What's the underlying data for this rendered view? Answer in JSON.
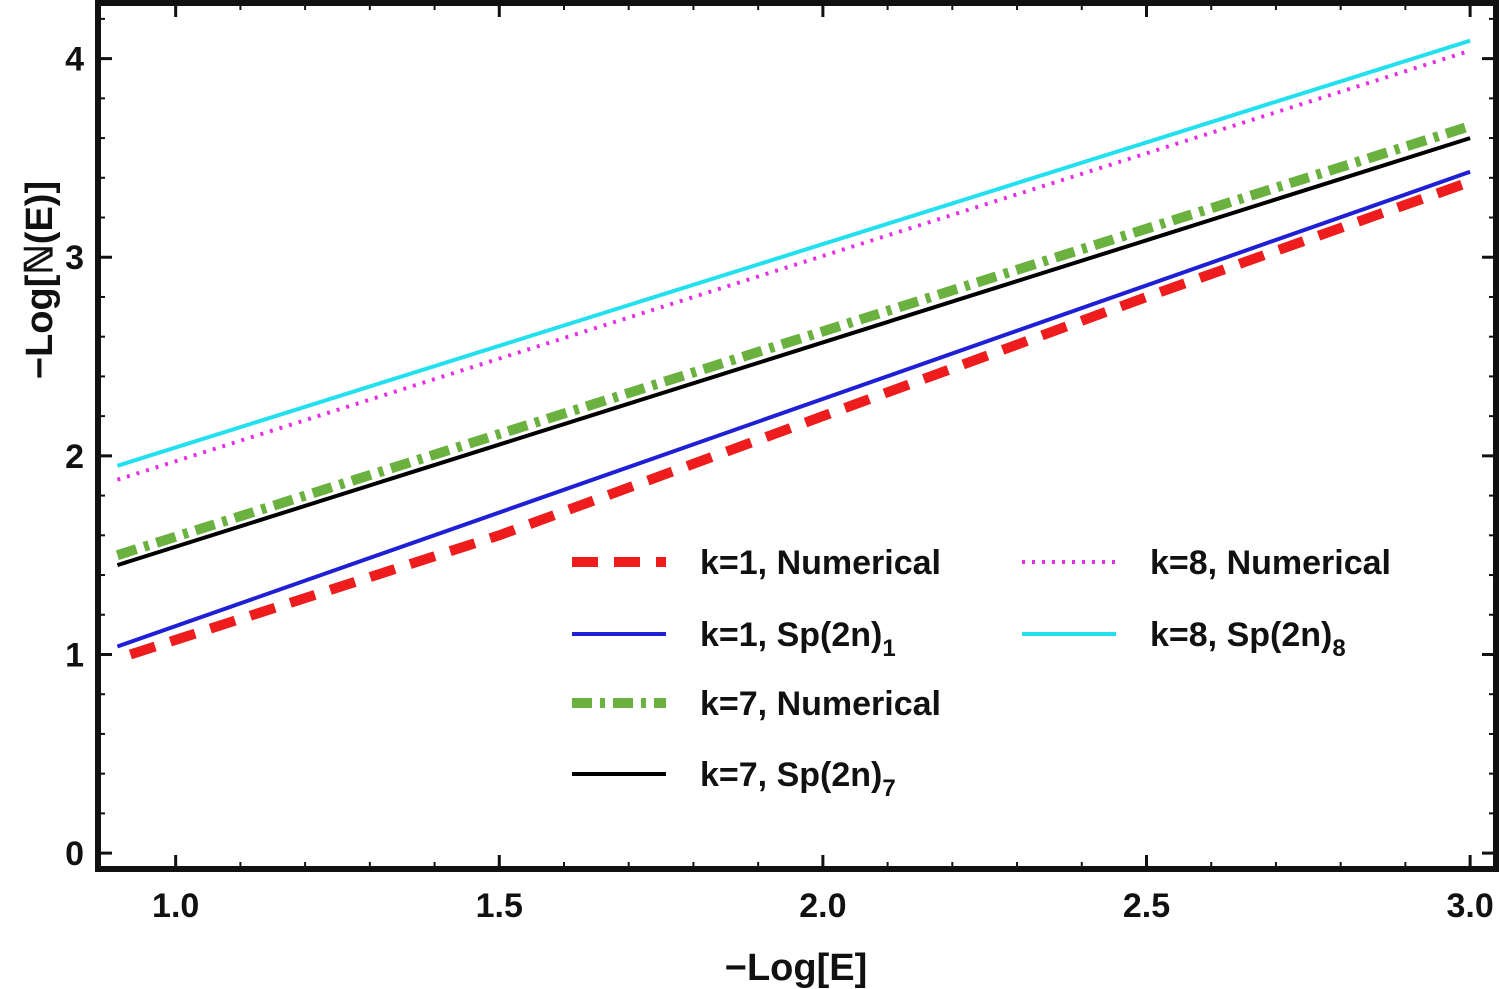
{
  "chart_data": {
    "type": "line",
    "title": "",
    "xlabel": "−Log[E]",
    "ylabel": "−Log[ℕ(E)]",
    "xlim": [
      0.88,
      3.04
    ],
    "ylim": [
      -0.08,
      4.28
    ],
    "xticks": [
      1.0,
      1.5,
      2.0,
      2.5,
      3.0
    ],
    "xtick_labels": [
      "1.0",
      "1.5",
      "2.0",
      "2.5",
      "3.0"
    ],
    "yticks": [
      0,
      1,
      2,
      3,
      4
    ],
    "ytick_labels": [
      "0",
      "1",
      "2",
      "3",
      "4"
    ],
    "grid": false,
    "legend_position": "lower-right",
    "series": [
      {
        "name": "k=1, Numerical",
        "label_main": "k=1, Numerical",
        "subscript": "",
        "color": "#ee1c1c",
        "style": "dashed",
        "x": [
          0.93,
          1.5,
          2.0,
          2.5,
          3.0
        ],
        "y": [
          1.0,
          1.6,
          2.2,
          2.8,
          3.38
        ]
      },
      {
        "name": "k=1, Sp(2n)_1",
        "label_main": "k=1, Sp(2n)",
        "subscript": "1",
        "color": "#1f1fd6",
        "style": "solid",
        "x": [
          0.91,
          3.0
        ],
        "y": [
          1.04,
          3.43
        ]
      },
      {
        "name": "k=7, Numerical",
        "label_main": "k=7, Numerical",
        "subscript": "",
        "color": "#6ab140",
        "style": "dashdot",
        "x": [
          0.91,
          3.0
        ],
        "y": [
          1.5,
          3.66
        ]
      },
      {
        "name": "k=7, Sp(2n)_7",
        "label_main": "k=7, Sp(2n)",
        "subscript": "7",
        "color": "#000000",
        "style": "solid",
        "x": [
          0.91,
          3.0
        ],
        "y": [
          1.45,
          3.6
        ]
      },
      {
        "name": "k=8, Numerical",
        "label_main": "k=8, Numerical",
        "subscript": "",
        "color": "#e62ee6",
        "style": "dotted",
        "x": [
          0.91,
          3.0
        ],
        "y": [
          1.88,
          4.04
        ]
      },
      {
        "name": "k=8, Sp(2n)_8",
        "label_main": "k=8, Sp(2n)",
        "subscript": "8",
        "color": "#22e0ee",
        "style": "solid",
        "x": [
          0.91,
          3.0
        ],
        "y": [
          1.95,
          4.09
        ]
      }
    ]
  }
}
